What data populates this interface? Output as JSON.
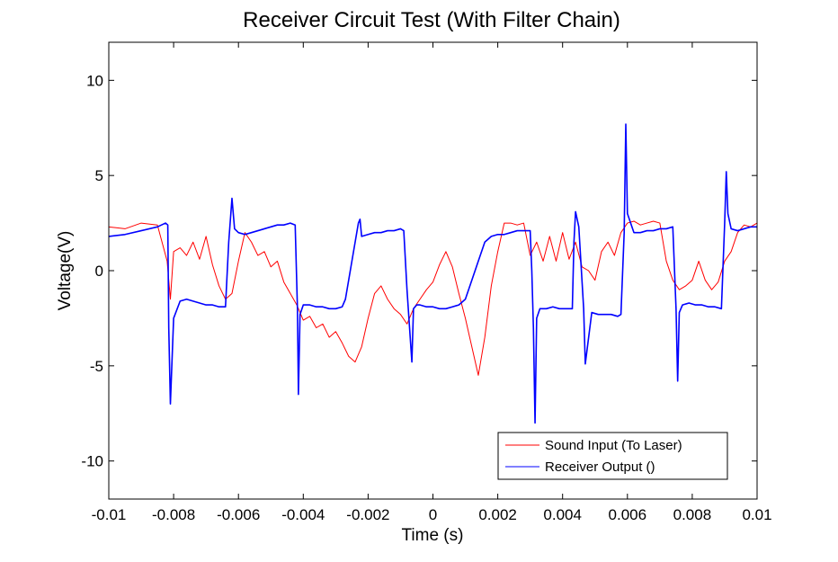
{
  "chart_data": {
    "type": "line",
    "title": "Receiver Circuit Test (With Filter Chain)",
    "xlabel": "Time (s)",
    "ylabel": "Voltage(V)",
    "xlim": [
      -0.01,
      0.01
    ],
    "ylim": [
      -12,
      12
    ],
    "x_ticks": [
      -0.01,
      -0.008,
      -0.006,
      -0.004,
      -0.002,
      0,
      0.002,
      0.004,
      0.006,
      0.008,
      0.01
    ],
    "x_tick_labels": [
      "-0.01",
      "-0.008",
      "-0.006",
      "-0.004",
      "-0.002",
      "0",
      "0.002",
      "0.004",
      "0.006",
      "0.008",
      "0.01"
    ],
    "y_ticks": [
      -10,
      -5,
      0,
      5,
      10
    ],
    "y_tick_labels": [
      "-10",
      "-5",
      "0",
      "5",
      "10"
    ],
    "grid": false,
    "legend_position": "bottom-right",
    "series": [
      {
        "name": "Sound Input (To Laser)",
        "color": "#ff0000",
        "x": [
          -0.01,
          -0.0095,
          -0.009,
          -0.0085,
          -0.0082,
          -0.0081,
          -0.008,
          -0.0078,
          -0.0076,
          -0.0074,
          -0.0072,
          -0.007,
          -0.0068,
          -0.0066,
          -0.0064,
          -0.0062,
          -0.006,
          -0.0058,
          -0.0056,
          -0.0054,
          -0.0052,
          -0.005,
          -0.0048,
          -0.0046,
          -0.0044,
          -0.0042,
          -0.004,
          -0.0038,
          -0.0036,
          -0.0034,
          -0.0032,
          -0.003,
          -0.0028,
          -0.0026,
          -0.0024,
          -0.0022,
          -0.002,
          -0.0018,
          -0.0016,
          -0.0014,
          -0.0012,
          -0.001,
          -0.0008,
          -0.0006,
          -0.0004,
          -0.0002,
          0,
          0.0002,
          0.0004,
          0.0006,
          0.0008,
          0.001,
          0.0012,
          0.0014,
          0.0016,
          0.0018,
          0.002,
          0.0022,
          0.0024,
          0.0026,
          0.0028,
          0.003,
          0.0032,
          0.0034,
          0.0036,
          0.0038,
          0.004,
          0.0042,
          0.0044,
          0.0046,
          0.0048,
          0.005,
          0.0052,
          0.0054,
          0.0056,
          0.0058,
          0.006,
          0.0062,
          0.0064,
          0.0066,
          0.0068,
          0.007,
          0.0072,
          0.0074,
          0.0076,
          0.0078,
          0.008,
          0.0082,
          0.0084,
          0.0086,
          0.0088,
          0.009,
          0.0092,
          0.0094,
          0.0096,
          0.0098,
          0.01
        ],
        "y": [
          2.3,
          2.2,
          2.5,
          2.4,
          0.5,
          -1.5,
          1.0,
          1.2,
          0.8,
          1.5,
          0.6,
          1.8,
          0.3,
          -0.8,
          -1.5,
          -1.2,
          0.5,
          2.0,
          1.5,
          0.8,
          1.0,
          0.2,
          0.5,
          -0.6,
          -1.2,
          -1.8,
          -2.6,
          -2.4,
          -3.0,
          -2.8,
          -3.5,
          -3.2,
          -3.8,
          -4.5,
          -4.8,
          -4.0,
          -2.5,
          -1.2,
          -0.8,
          -1.5,
          -2.0,
          -2.3,
          -2.8,
          -2.0,
          -1.5,
          -1.0,
          -0.6,
          0.3,
          1.0,
          0.2,
          -1.2,
          -2.5,
          -4.0,
          -5.5,
          -3.5,
          -0.8,
          1.0,
          2.5,
          2.5,
          2.4,
          2.5,
          0.8,
          1.5,
          0.5,
          1.8,
          0.5,
          2.0,
          0.6,
          1.5,
          0.2,
          0.0,
          -0.5,
          1.0,
          1.5,
          0.8,
          2.0,
          2.5,
          2.6,
          2.4,
          2.5,
          2.6,
          2.5,
          0.5,
          -0.5,
          -1.0,
          -0.8,
          -0.5,
          0.5,
          -0.5,
          -1.0,
          -0.6,
          0.5,
          1.0,
          2.0,
          2.4,
          2.3,
          2.5
        ]
      },
      {
        "name": "Receiver Output ()",
        "color": "#0000ff",
        "x": [
          -0.01,
          -0.0095,
          -0.009,
          -0.0085,
          -0.00825,
          -0.00818,
          -0.00815,
          -0.0081,
          -0.008,
          -0.0078,
          -0.0076,
          -0.0074,
          -0.0072,
          -0.007,
          -0.0068,
          -0.0066,
          -0.0064,
          -0.0063,
          -0.0062,
          -0.00612,
          -0.006,
          -0.0058,
          -0.0056,
          -0.0054,
          -0.0052,
          -0.005,
          -0.0048,
          -0.0046,
          -0.0044,
          -0.00425,
          -0.00418,
          -0.00415,
          -0.0041,
          -0.004,
          -0.0038,
          -0.0036,
          -0.0034,
          -0.0032,
          -0.003,
          -0.0028,
          -0.0027,
          -0.0025,
          -0.0023,
          -0.00225,
          -0.0022,
          -0.002,
          -0.0018,
          -0.0016,
          -0.0014,
          -0.0012,
          -0.001,
          -0.0009,
          -0.0008,
          -0.00065,
          -0.0006,
          -0.0005,
          -0.0004,
          -0.0002,
          0,
          0.0002,
          0.0004,
          0.0006,
          0.0008,
          0.001,
          0.0012,
          0.0014,
          0.0016,
          0.0018,
          0.002,
          0.0022,
          0.0024,
          0.0026,
          0.0028,
          0.003,
          0.00305,
          0.0031,
          0.00315,
          0.0032,
          0.0033,
          0.0035,
          0.0037,
          0.0039,
          0.0041,
          0.0043,
          0.00435,
          0.0044,
          0.0045,
          0.00465,
          0.0047,
          0.0049,
          0.0051,
          0.0053,
          0.0055,
          0.0057,
          0.0058,
          0.0059,
          0.00595,
          0.006,
          0.0062,
          0.0064,
          0.0066,
          0.0068,
          0.007,
          0.0072,
          0.0074,
          0.0075,
          0.00755,
          0.0076,
          0.0077,
          0.0079,
          0.0081,
          0.0083,
          0.0085,
          0.0087,
          0.0089,
          0.009,
          0.00905,
          0.0091,
          0.0092,
          0.0094,
          0.0096,
          0.0098,
          0.01
        ],
        "y": [
          1.8,
          1.9,
          2.1,
          2.3,
          2.5,
          2.4,
          -3.0,
          -7.0,
          -2.5,
          -1.6,
          -1.5,
          -1.6,
          -1.7,
          -1.8,
          -1.8,
          -1.9,
          -1.9,
          1.5,
          3.8,
          2.2,
          2.0,
          1.9,
          2.0,
          2.1,
          2.2,
          2.3,
          2.4,
          2.4,
          2.5,
          2.4,
          -2.0,
          -6.5,
          -2.3,
          -1.8,
          -1.8,
          -1.9,
          -1.9,
          -2.0,
          -2.0,
          -1.9,
          -1.5,
          0.5,
          2.5,
          2.7,
          1.8,
          1.9,
          2.0,
          2.0,
          2.1,
          2.1,
          2.2,
          2.1,
          -1.0,
          -4.8,
          -2.0,
          -1.8,
          -1.8,
          -1.9,
          -1.9,
          -2.0,
          -2.0,
          -1.9,
          -1.8,
          -1.5,
          -0.5,
          0.5,
          1.5,
          1.8,
          1.9,
          1.9,
          2.0,
          2.1,
          2.1,
          2.1,
          0.0,
          -3.0,
          -8.0,
          -2.5,
          -2.0,
          -2.0,
          -1.9,
          -2.0,
          -2.0,
          -2.0,
          1.5,
          3.1,
          2.3,
          -2.0,
          -4.9,
          -2.2,
          -2.3,
          -2.3,
          -2.3,
          -2.4,
          -2.3,
          2.0,
          7.7,
          3.0,
          2.0,
          2.0,
          2.1,
          2.1,
          2.2,
          2.2,
          2.3,
          -2.0,
          -5.8,
          -2.2,
          -1.8,
          -1.7,
          -1.8,
          -1.8,
          -1.9,
          -1.9,
          -2.0,
          2.5,
          5.2,
          3.0,
          2.2,
          2.1,
          2.2,
          2.3,
          2.3
        ]
      }
    ]
  }
}
